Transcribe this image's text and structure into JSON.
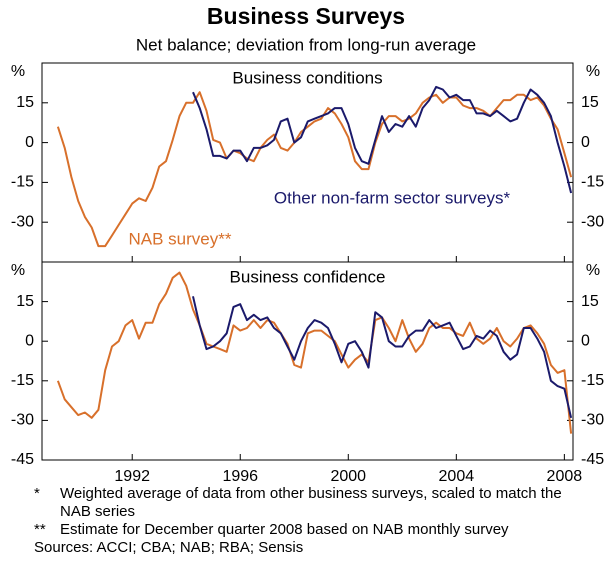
{
  "title": "Business Surveys",
  "subtitle": "Net balance; deviation from long-run average",
  "chart_data": [
    {
      "type": "line",
      "title": "Business conditions",
      "ylabel": "%",
      "x": [
        1989.25,
        1989.5,
        1989.75,
        1990,
        1990.25,
        1990.5,
        1990.75,
        1991,
        1991.25,
        1991.5,
        1991.75,
        1992,
        1992.25,
        1992.5,
        1992.75,
        1993,
        1993.25,
        1993.5,
        1993.75,
        1994,
        1994.25,
        1994.5,
        1994.75,
        1995,
        1995.25,
        1995.5,
        1995.75,
        1996,
        1996.25,
        1996.5,
        1996.75,
        1997,
        1997.25,
        1997.5,
        1997.75,
        1998,
        1998.25,
        1998.5,
        1998.75,
        1999,
        1999.25,
        1999.5,
        1999.75,
        2000,
        2000.25,
        2000.5,
        2000.75,
        2001,
        2001.25,
        2001.5,
        2001.75,
        2002,
        2002.25,
        2002.5,
        2002.75,
        2003,
        2003.25,
        2003.5,
        2003.75,
        2004,
        2004.25,
        2004.5,
        2004.75,
        2005,
        2005.25,
        2005.5,
        2005.75,
        2006,
        2006.25,
        2006.5,
        2006.75,
        2007,
        2007.25,
        2007.5,
        2007.75,
        2008,
        2008.25
      ],
      "xlim": [
        1988.66,
        2008.32
      ],
      "xticks": [
        1992,
        1996,
        2000,
        2004,
        2008
      ],
      "ylim": [
        -45,
        30
      ],
      "yticks": [
        -30,
        -15,
        0,
        15
      ],
      "grid": false,
      "series": [
        {
          "name": "NAB survey**",
          "color": "#d8702b",
          "values": [
            6,
            -2,
            -13,
            -22,
            -28,
            -32,
            -39,
            -39,
            -35,
            -31,
            -27,
            -23,
            -21,
            -22,
            -17,
            -9,
            -7,
            1,
            10,
            15,
            15,
            19,
            12,
            1,
            0,
            -6,
            -3,
            -4,
            -6,
            -7,
            -2,
            1,
            3,
            -2,
            -3,
            0,
            4,
            6,
            8,
            9,
            13,
            11,
            7,
            2,
            -7,
            -10,
            -10,
            0,
            7,
            10,
            10,
            8,
            9,
            11,
            15,
            17,
            18,
            15,
            17,
            17,
            14,
            13,
            13,
            12,
            10,
            13,
            16,
            16,
            18,
            18,
            16,
            17,
            14,
            9,
            5,
            -4,
            -13
          ]
        },
        {
          "name": "Other non-farm sector surveys*",
          "color": "#1b1a6b",
          "values": [
            null,
            null,
            null,
            null,
            null,
            null,
            null,
            null,
            null,
            null,
            null,
            null,
            null,
            null,
            null,
            null,
            null,
            null,
            null,
            null,
            19,
            13,
            5,
            -5,
            -5,
            -6,
            -3,
            -3,
            -7,
            -2,
            -2,
            -1,
            1,
            8,
            9,
            0,
            2,
            8,
            9,
            10,
            11,
            13,
            13,
            7,
            -2,
            -7,
            -8,
            1,
            10,
            4,
            7,
            6,
            10,
            6,
            13,
            16,
            21,
            20,
            17,
            18,
            16,
            16,
            11,
            11,
            10,
            12,
            10,
            8,
            9,
            15,
            20,
            18,
            15,
            10,
            0,
            -9,
            -19
          ]
        }
      ]
    },
    {
      "type": "line",
      "title": "Business confidence",
      "ylabel": "%",
      "x": [
        1989.25,
        1989.5,
        1989.75,
        1990,
        1990.25,
        1990.5,
        1990.75,
        1991,
        1991.25,
        1991.5,
        1991.75,
        1992,
        1992.25,
        1992.5,
        1992.75,
        1993,
        1993.25,
        1993.5,
        1993.75,
        1994,
        1994.25,
        1994.5,
        1994.75,
        1995,
        1995.25,
        1995.5,
        1995.75,
        1996,
        1996.25,
        1996.5,
        1996.75,
        1997,
        1997.25,
        1997.5,
        1997.75,
        1998,
        1998.25,
        1998.5,
        1998.75,
        1999,
        1999.25,
        1999.5,
        1999.75,
        2000,
        2000.25,
        2000.5,
        2000.75,
        2001,
        2001.25,
        2001.5,
        2001.75,
        2002,
        2002.25,
        2002.5,
        2002.75,
        2003,
        2003.25,
        2003.5,
        2003.75,
        2004,
        2004.25,
        2004.5,
        2004.75,
        2005,
        2005.25,
        2005.5,
        2005.75,
        2006,
        2006.25,
        2006.5,
        2006.75,
        2007,
        2007.25,
        2007.5,
        2007.75,
        2008,
        2008.25
      ],
      "xlim": [
        1988.66,
        2008.32
      ],
      "xticks": [
        1992,
        1996,
        2000,
        2004,
        2008
      ],
      "ylim": [
        -45,
        30
      ],
      "yticks": [
        -45,
        -30,
        -15,
        0,
        15
      ],
      "grid": false,
      "series": [
        {
          "color": "#d8702b",
          "values": [
            -15,
            -22,
            -25,
            -28,
            -27,
            -29,
            -26,
            -11,
            -2,
            0,
            6,
            8,
            1,
            7,
            7,
            14,
            18,
            24,
            26,
            21,
            12,
            6,
            -1,
            -2,
            -3,
            -4,
            6,
            4,
            5,
            8,
            5,
            8,
            7,
            3,
            -1,
            -9,
            -10,
            3,
            4,
            4,
            2,
            0,
            -5,
            -10,
            -7,
            -5,
            -8,
            8,
            9,
            5,
            0,
            8,
            1,
            -4,
            -1,
            5,
            7,
            5,
            5,
            3,
            2,
            7,
            1,
            -1,
            1,
            5,
            0,
            -2,
            1,
            5,
            6,
            3,
            -1,
            -9,
            -12,
            -11,
            -35
          ]
        },
        {
          "color": "#1b1a6b",
          "values": [
            null,
            null,
            null,
            null,
            null,
            null,
            null,
            null,
            null,
            null,
            null,
            null,
            null,
            null,
            null,
            null,
            null,
            null,
            null,
            null,
            17,
            6,
            -3,
            -2,
            0,
            3,
            13,
            14,
            8,
            10,
            8,
            9,
            5,
            3,
            -2,
            -7,
            0,
            5,
            8,
            7,
            5,
            -1,
            -8,
            -1,
            0,
            -4,
            -10,
            11,
            9,
            0,
            -2,
            -2,
            2,
            4,
            4,
            8,
            5,
            6,
            7,
            2,
            -3,
            -2,
            2,
            1,
            4,
            2,
            -4,
            -7,
            -5,
            5,
            5,
            1,
            -4,
            -15,
            -17,
            -18,
            -29
          ]
        }
      ]
    }
  ],
  "footnotes": [
    {
      "marker": "*",
      "text": "Weighted average of data from other business surveys, scaled to match the NAB series"
    },
    {
      "marker": "**",
      "text": "Estimate for December quarter 2008 based on NAB monthly survey"
    }
  ],
  "sources": "Sources: ACCI; CBA; NAB; RBA; Sensis"
}
